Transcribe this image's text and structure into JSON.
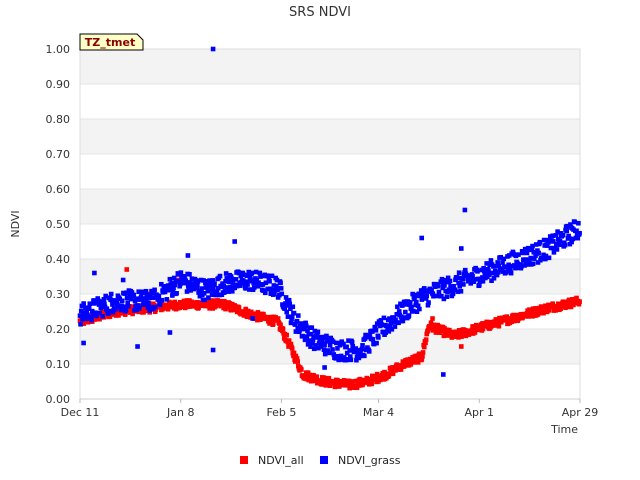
{
  "chart_data": {
    "type": "scatter",
    "title": "SRS NDVI",
    "xlabel": "Time",
    "ylabel": "NDVI",
    "ylim": [
      0,
      1
    ],
    "xlim": [
      0,
      139
    ],
    "y_ticks": [
      0,
      0.1,
      0.2,
      0.3,
      0.4,
      0.5,
      0.6,
      0.7,
      0.8,
      0.9,
      1.0
    ],
    "y_tick_labels": [
      "0.00",
      "0.10",
      "0.20",
      "0.30",
      "0.40",
      "0.50",
      "0.60",
      "0.70",
      "0.80",
      "0.90",
      "1.00"
    ],
    "x_ticks": [
      {
        "day": 0,
        "label": "Dec 11"
      },
      {
        "day": 28,
        "label": "Jan 8"
      },
      {
        "day": 56,
        "label": "Feb 5"
      },
      {
        "day": 83,
        "label": "Mar 4"
      },
      {
        "day": 111,
        "label": "Apr 1"
      },
      {
        "day": 139,
        "label": "Apr 29"
      }
    ],
    "annotation": "TZ_tmet",
    "legend_position": "bottom-center",
    "series": [
      {
        "name": "NDVI_all",
        "color": "#ff0000",
        "trend": [
          [
            0,
            0.22
          ],
          [
            10,
            0.25
          ],
          [
            20,
            0.26
          ],
          [
            28,
            0.27
          ],
          [
            40,
            0.27
          ],
          [
            48,
            0.24
          ],
          [
            55,
            0.22
          ],
          [
            58,
            0.16
          ],
          [
            62,
            0.07
          ],
          [
            68,
            0.05
          ],
          [
            75,
            0.04
          ],
          [
            80,
            0.05
          ],
          [
            85,
            0.07
          ],
          [
            90,
            0.1
          ],
          [
            95,
            0.12
          ],
          [
            97,
            0.21
          ],
          [
            104,
            0.18
          ],
          [
            110,
            0.2
          ],
          [
            120,
            0.23
          ],
          [
            130,
            0.26
          ],
          [
            139,
            0.28
          ]
        ],
        "outliers": [
          [
            13,
            0.37
          ],
          [
            19,
            0.3
          ],
          [
            27,
            0.34
          ],
          [
            33,
            0.31
          ],
          [
            98,
            0.23
          ],
          [
            106,
            0.15
          ]
        ]
      },
      {
        "name": "NDVI_grass",
        "color": "#0000ff",
        "trend": [
          [
            0,
            0.24
          ],
          [
            10,
            0.28
          ],
          [
            20,
            0.28
          ],
          [
            28,
            0.34
          ],
          [
            35,
            0.31
          ],
          [
            40,
            0.33
          ],
          [
            47,
            0.34
          ],
          [
            55,
            0.32
          ],
          [
            60,
            0.22
          ],
          [
            65,
            0.17
          ],
          [
            72,
            0.14
          ],
          [
            78,
            0.14
          ],
          [
            85,
            0.21
          ],
          [
            90,
            0.25
          ],
          [
            95,
            0.29
          ],
          [
            100,
            0.31
          ],
          [
            105,
            0.33
          ],
          [
            110,
            0.35
          ],
          [
            120,
            0.39
          ],
          [
            130,
            0.43
          ],
          [
            139,
            0.49
          ]
        ],
        "outliers": [
          [
            37,
            1.0
          ],
          [
            37,
            0.14
          ],
          [
            43,
            0.45
          ],
          [
            16,
            0.15
          ],
          [
            95,
            0.46
          ],
          [
            107,
            0.54
          ],
          [
            106,
            0.43
          ],
          [
            1,
            0.16
          ],
          [
            4,
            0.36
          ],
          [
            12,
            0.34
          ],
          [
            25,
            0.19
          ],
          [
            30,
            0.41
          ],
          [
            48,
            0.23
          ],
          [
            68,
            0.09
          ],
          [
            101,
            0.07
          ]
        ]
      }
    ]
  }
}
